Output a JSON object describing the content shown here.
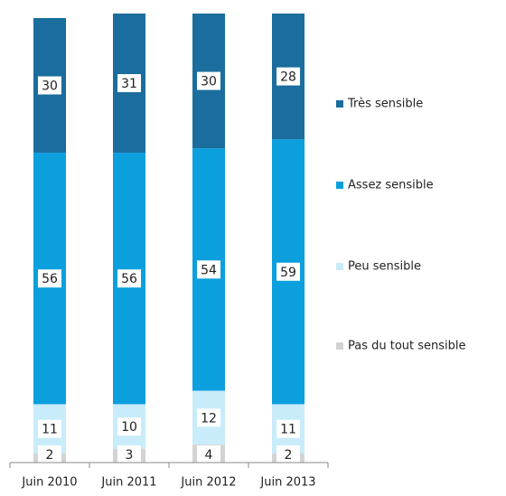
{
  "chart_data": {
    "type": "stacked_bar",
    "categories": [
      "Juin 2010",
      "Juin 2011",
      "Juin 2012",
      "Juin 2013"
    ],
    "series": [
      {
        "name": "Pas du tout sensible",
        "color": "#d3d3d3",
        "values": [
          2,
          3,
          4,
          2
        ]
      },
      {
        "name": "Peu sensible",
        "color": "#c9ecfa",
        "values": [
          11,
          10,
          12,
          11
        ]
      },
      {
        "name": "Assez sensible",
        "color": "#0c9fde",
        "values": [
          56,
          56,
          54,
          59
        ]
      },
      {
        "name": "Très sensible",
        "color": "#1a6d9d",
        "values": [
          30,
          31,
          30,
          28
        ]
      }
    ],
    "ylim": [
      0,
      100
    ],
    "legend": "right"
  }
}
